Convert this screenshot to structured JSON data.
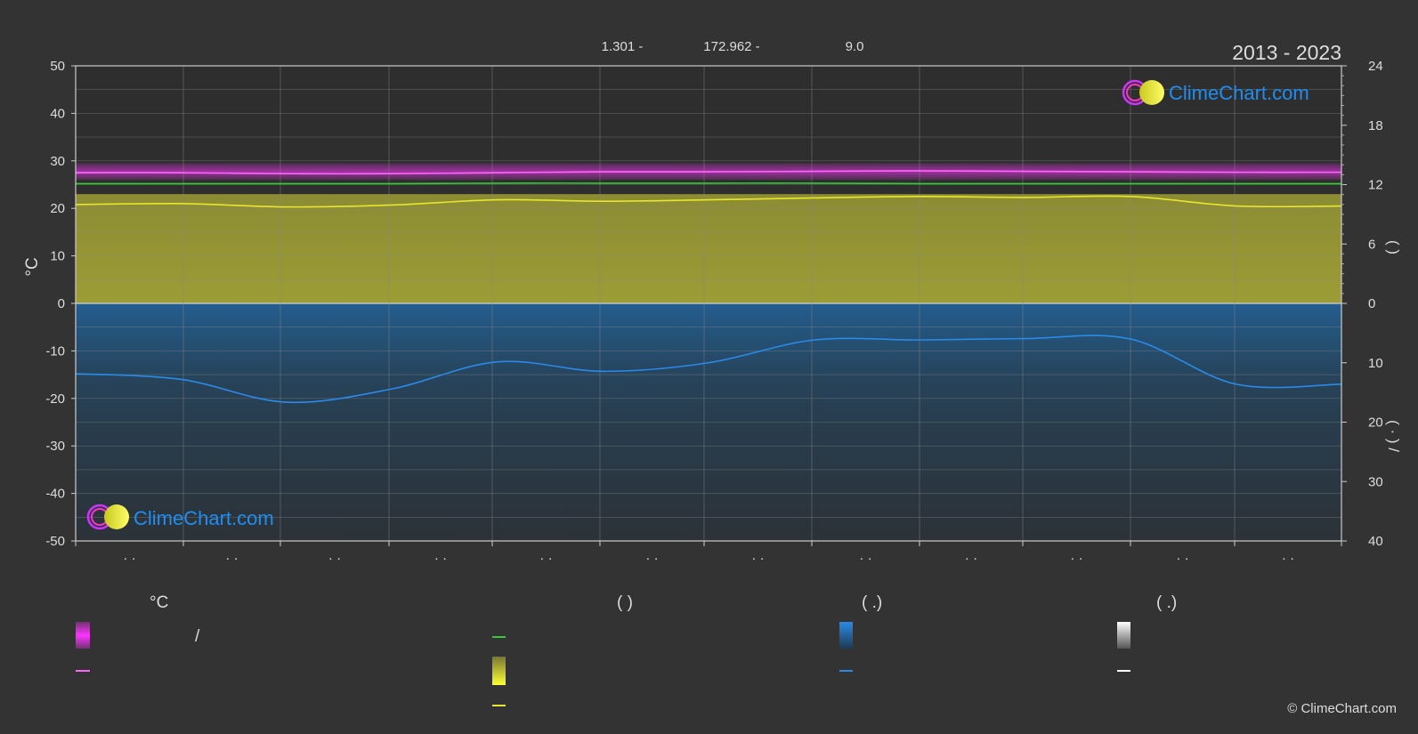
{
  "header": {
    "stats": [
      "1.301 -",
      "172.962 -",
      "9.0"
    ],
    "period": "2013 - 2023"
  },
  "logo": {
    "text": "ClimeChart.com",
    "icon": "climechart-logo-icon"
  },
  "copyright": "© ClimeChart.com",
  "colors": {
    "background": "#333333",
    "magenta": "#ff33ff",
    "green": "#33cc33",
    "yellow": "#e6e62e",
    "blue": "#2a8ae8",
    "logo": "#1f8ef0"
  },
  "legend": {
    "headers": [
      "°C",
      "(          )",
      "(   .)",
      "(   .)"
    ],
    "slash_label": "/"
  },
  "chart_data": {
    "type": "area",
    "ylabel": "°C",
    "ylim": [
      -50,
      50
    ],
    "yticks_left": [
      "50",
      "40",
      "30",
      "20",
      "10",
      "0",
      "-10",
      "-20",
      "-30",
      "-40",
      "-50"
    ],
    "yticks_right_top": [
      "24",
      "18",
      "12",
      "6",
      "0"
    ],
    "yticks_right_bottom": [
      "10",
      "20",
      "30",
      "40"
    ],
    "right_axis_top_ylim": [
      0,
      24
    ],
    "right_axis_bottom_ylim": [
      0,
      40
    ],
    "right_axis_top_label": "(      )",
    "right_axis_bottom_label": "(  ·  )    /",
    "xtick_labels": [
      "· ·",
      "· ·",
      "· ·",
      "· ·",
      "· ·",
      "· ·",
      "· ·",
      "· ·",
      "· ·",
      "· ·",
      "· ·",
      "· ·"
    ],
    "grid": true,
    "months_x": [
      0,
      1,
      2,
      3,
      4,
      5,
      6,
      7,
      8,
      9,
      10,
      11,
      12
    ],
    "series": [
      {
        "values": [
          27.5,
          27.5,
          27.3,
          27.3,
          27.5,
          27.7,
          27.7,
          27.8,
          27.9,
          27.8,
          27.7,
          27.6,
          27.6
        ],
        "color": "#ff66ff",
        "kind": "line"
      },
      {
        "values": [
          25.2,
          25.2,
          25.2,
          25.2,
          25.3,
          25.3,
          25.3,
          25.3,
          25.2,
          25.2,
          25.2,
          25.2,
          25.2
        ],
        "color": "#33cc33",
        "kind": "line"
      },
      {
        "values": [
          20.8,
          21.0,
          20.3,
          20.7,
          21.8,
          21.5,
          21.8,
          22.2,
          22.5,
          22.3,
          22.5,
          20.5,
          20.5
        ],
        "color": "#e6e62e",
        "kind": "line"
      },
      {
        "values": [
          -14.8,
          -16.0,
          -20.8,
          -18.0,
          -12.3,
          -14.3,
          -12.5,
          -7.7,
          -7.7,
          -7.4,
          -7.5,
          -17.0,
          -17.0
        ],
        "color": "#2a8ae8",
        "kind": "line"
      }
    ],
    "bands": {
      "magenta_range": [
        26.0,
        29.5
      ],
      "yellow_fill_top": 23.0
    }
  }
}
